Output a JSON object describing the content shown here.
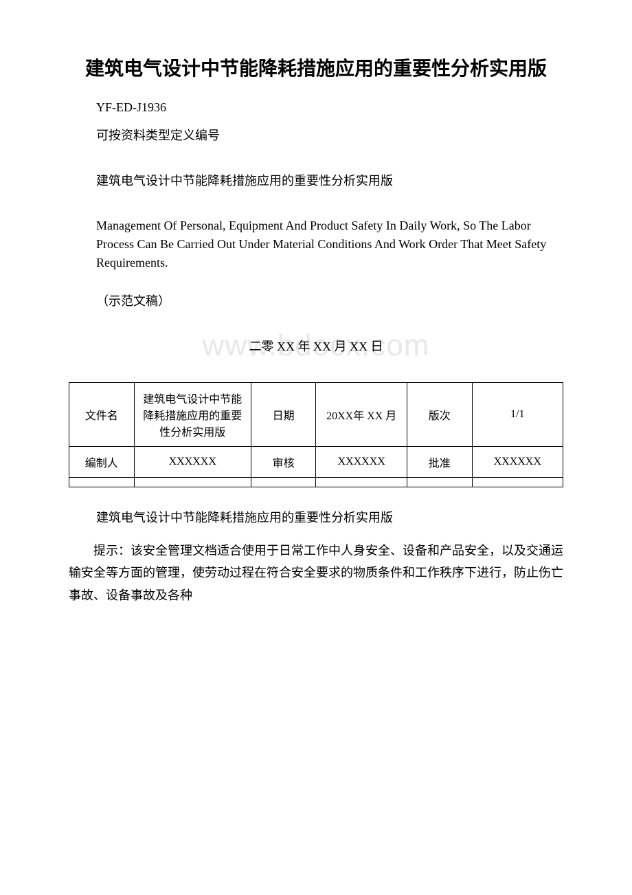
{
  "title": "建筑电气设计中节能降耗措施应用的重要性分析实用版",
  "doc_id": "YF-ED-J1936",
  "subtitle": "可按资料类型定义编号",
  "repeat_title": "建筑电气设计中节能降耗措施应用的重要性分析实用版",
  "english_paragraph": "Management Of Personal, Equipment And Product Safety In Daily Work, So The Labor Process Can Be Carried Out Under Material Conditions And Work Order That Meet Safety Requirements.",
  "sample_note": "（示范文稿）",
  "date_text": "二零 XX 年 XX 月 XX 日",
  "watermark_text": "www.bdocx.com",
  "table": {
    "row1": {
      "label1": "文件名",
      "value1": "建筑电气设计中节能降耗措施应用的重要性分析实用版",
      "label2": "日期",
      "value2": "20XX年 XX 月",
      "label3": "版次",
      "value3": "1/1"
    },
    "row2": {
      "label1": "编制人",
      "value1": "XXXXXX",
      "label2": "审核",
      "value2": "XXXXXX",
      "label3": "批准",
      "value3": "XXXXXX"
    }
  },
  "section_title": "建筑电气设计中节能降耗措施应用的重要性分析实用版",
  "body_paragraph": "提示：该安全管理文档适合使用于日常工作中人身安全、设备和产品安全，以及交通运输安全等方面的管理，使劳动过程在符合安全要求的物质条件和工作秩序下进行，防止伤亡事故、设备事故及各种",
  "colors": {
    "text": "#000000",
    "background": "#ffffff",
    "border": "#000000",
    "watermark": "#e8e8e8"
  }
}
